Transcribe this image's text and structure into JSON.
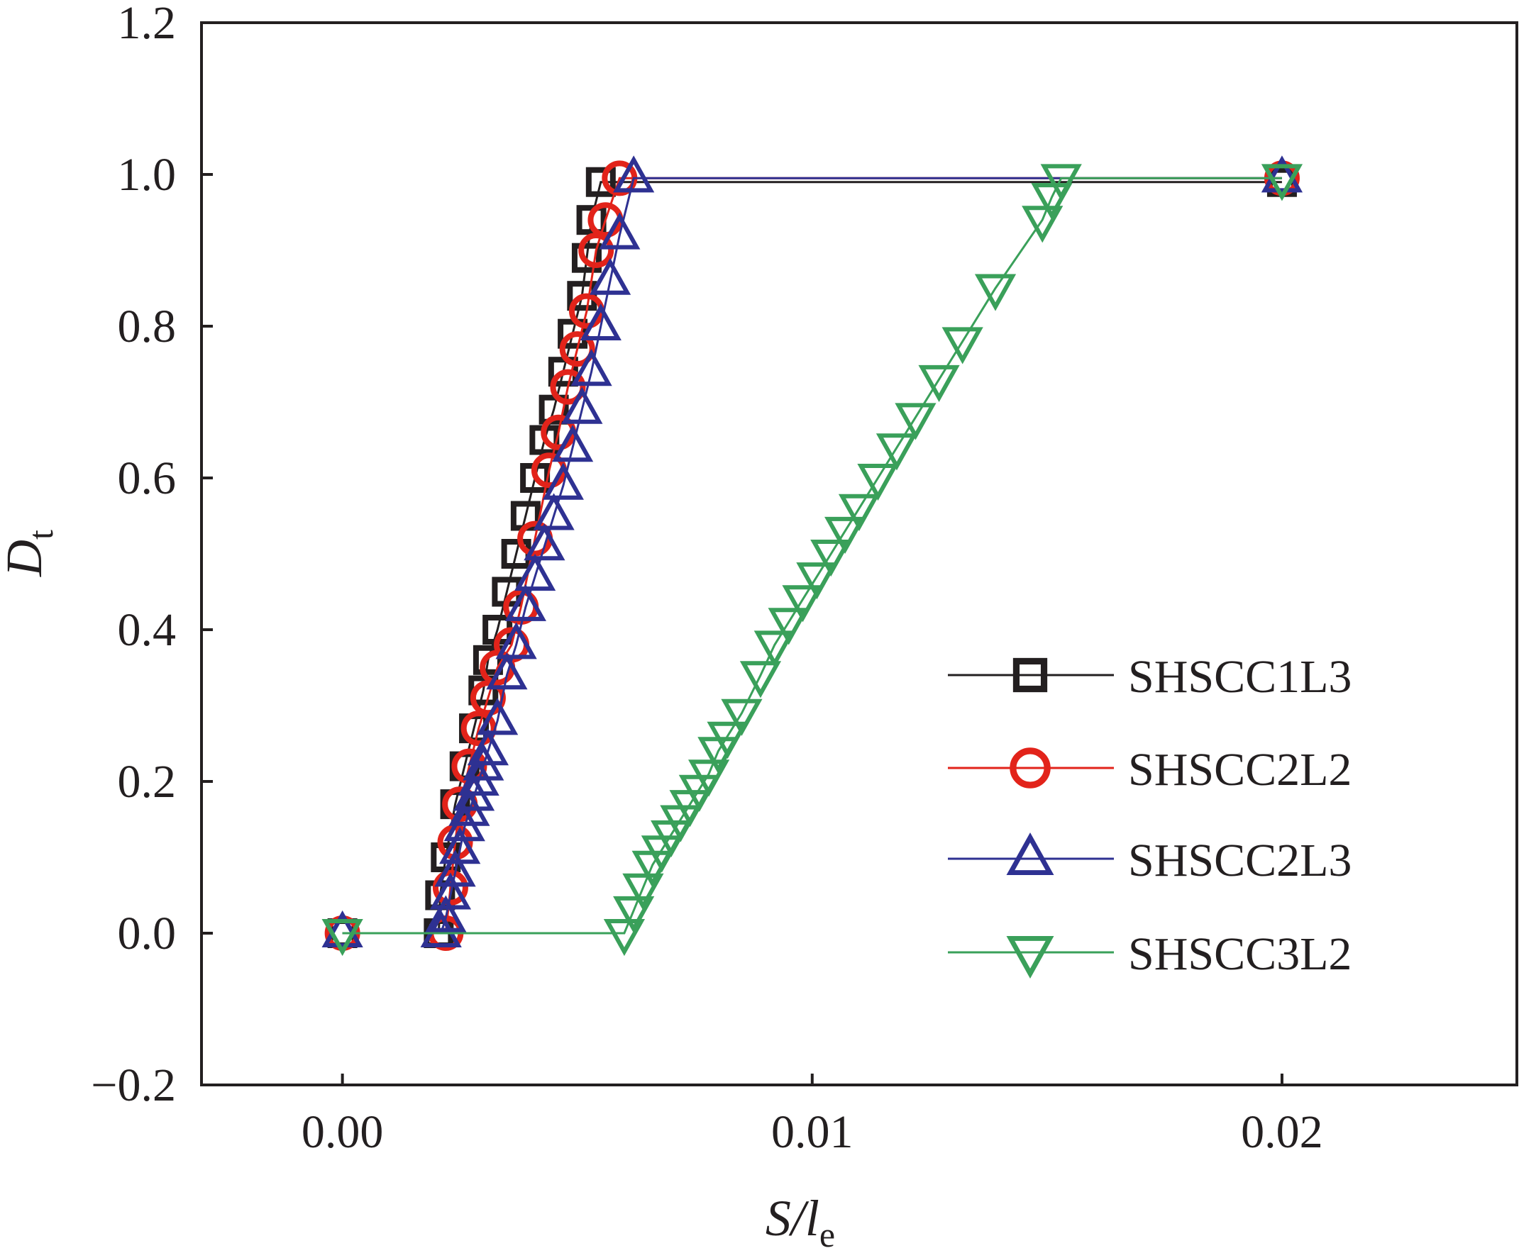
{
  "chart_data": {
    "type": "line",
    "xlabel": {
      "main": "S/l",
      "sub": "e"
    },
    "ylabel": {
      "main": "D",
      "sub": "t"
    },
    "xlim": [
      -0.003,
      0.025
    ],
    "ylim": [
      -0.2,
      1.2
    ],
    "xticks": [
      0.0,
      0.01,
      0.02
    ],
    "xtick_labels": [
      "0.00",
      "0.01",
      "0.02"
    ],
    "yticks": [
      -0.2,
      0.0,
      0.2,
      0.4,
      0.6,
      0.8,
      1.0,
      1.2
    ],
    "ytick_labels": [
      "−0.2",
      "0.0",
      "0.2",
      "0.4",
      "0.6",
      "0.8",
      "1.0",
      "1.2"
    ],
    "grid": false,
    "legend_position": "lower-right",
    "series": [
      {
        "name": "SHSCC1L3",
        "color": "#231f20",
        "marker": "square",
        "points": [
          [
            0.0,
            0.0
          ],
          [
            0.00205,
            0.0
          ],
          [
            0.00208,
            0.05
          ],
          [
            0.0022,
            0.1
          ],
          [
            0.0024,
            0.17
          ],
          [
            0.0026,
            0.22
          ],
          [
            0.0028,
            0.27
          ],
          [
            0.003,
            0.32
          ],
          [
            0.0031,
            0.36
          ],
          [
            0.0033,
            0.4
          ],
          [
            0.0035,
            0.45
          ],
          [
            0.0037,
            0.5
          ],
          [
            0.0039,
            0.55
          ],
          [
            0.0041,
            0.6
          ],
          [
            0.0043,
            0.65
          ],
          [
            0.0045,
            0.69
          ],
          [
            0.0047,
            0.74
          ],
          [
            0.0049,
            0.79
          ],
          [
            0.0051,
            0.84
          ],
          [
            0.0052,
            0.89
          ],
          [
            0.0053,
            0.94
          ],
          [
            0.0055,
            0.99
          ],
          [
            0.02,
            0.99
          ]
        ]
      },
      {
        "name": "SHSCC2L2",
        "color": "#e2231a",
        "marker": "circle",
        "points": [
          [
            0.0,
            0.0
          ],
          [
            0.0022,
            0.0
          ],
          [
            0.0023,
            0.06
          ],
          [
            0.0024,
            0.12
          ],
          [
            0.0025,
            0.17
          ],
          [
            0.0027,
            0.22
          ],
          [
            0.0029,
            0.27
          ],
          [
            0.0031,
            0.31
          ],
          [
            0.0033,
            0.35
          ],
          [
            0.0036,
            0.38
          ],
          [
            0.0038,
            0.43
          ],
          [
            0.0041,
            0.52
          ],
          [
            0.0044,
            0.61
          ],
          [
            0.0046,
            0.66
          ],
          [
            0.0048,
            0.72
          ],
          [
            0.005,
            0.77
          ],
          [
            0.0052,
            0.82
          ],
          [
            0.0054,
            0.9
          ],
          [
            0.0056,
            0.94
          ],
          [
            0.0059,
            0.995
          ],
          [
            0.02,
            0.995
          ]
        ]
      },
      {
        "name": "SHSCC2L3",
        "color": "#2e3192",
        "marker": "triangle-up",
        "points": [
          [
            0.0,
            0.0
          ],
          [
            0.0021,
            0.0
          ],
          [
            0.0022,
            0.02
          ],
          [
            0.0023,
            0.05
          ],
          [
            0.0024,
            0.08
          ],
          [
            0.0025,
            0.11
          ],
          [
            0.0026,
            0.14
          ],
          [
            0.0027,
            0.16
          ],
          [
            0.0028,
            0.18
          ],
          [
            0.0029,
            0.2
          ],
          [
            0.003,
            0.22
          ],
          [
            0.0031,
            0.24
          ],
          [
            0.0033,
            0.28
          ],
          [
            0.0035,
            0.34
          ],
          [
            0.0037,
            0.38
          ],
          [
            0.0039,
            0.43
          ],
          [
            0.0041,
            0.47
          ],
          [
            0.0043,
            0.51
          ],
          [
            0.0045,
            0.55
          ],
          [
            0.0047,
            0.59
          ],
          [
            0.0049,
            0.64
          ],
          [
            0.0051,
            0.69
          ],
          [
            0.0053,
            0.74
          ],
          [
            0.0055,
            0.8
          ],
          [
            0.0057,
            0.86
          ],
          [
            0.0059,
            0.92
          ],
          [
            0.0062,
            0.995
          ],
          [
            0.02,
            0.995
          ]
        ]
      },
      {
        "name": "SHSCC3L2",
        "color": "#3aa05a",
        "marker": "triangle-down",
        "points": [
          [
            0.0,
            0.0
          ],
          [
            0.006,
            0.0
          ],
          [
            0.0062,
            0.03
          ],
          [
            0.0064,
            0.06
          ],
          [
            0.0066,
            0.09
          ],
          [
            0.0068,
            0.11
          ],
          [
            0.007,
            0.13
          ],
          [
            0.0072,
            0.15
          ],
          [
            0.0074,
            0.17
          ],
          [
            0.0076,
            0.19
          ],
          [
            0.0078,
            0.21
          ],
          [
            0.008,
            0.24
          ],
          [
            0.0082,
            0.26
          ],
          [
            0.0085,
            0.29
          ],
          [
            0.0089,
            0.34
          ],
          [
            0.0092,
            0.38
          ],
          [
            0.0095,
            0.41
          ],
          [
            0.0098,
            0.44
          ],
          [
            0.0101,
            0.47
          ],
          [
            0.0104,
            0.5
          ],
          [
            0.0107,
            0.53
          ],
          [
            0.011,
            0.56
          ],
          [
            0.0114,
            0.6
          ],
          [
            0.0118,
            0.64
          ],
          [
            0.0122,
            0.68
          ],
          [
            0.0127,
            0.73
          ],
          [
            0.0132,
            0.78
          ],
          [
            0.0139,
            0.85
          ],
          [
            0.0149,
            0.94
          ],
          [
            0.0151,
            0.97
          ],
          [
            0.0153,
            0.995
          ],
          [
            0.02,
            0.995
          ]
        ]
      }
    ]
  }
}
